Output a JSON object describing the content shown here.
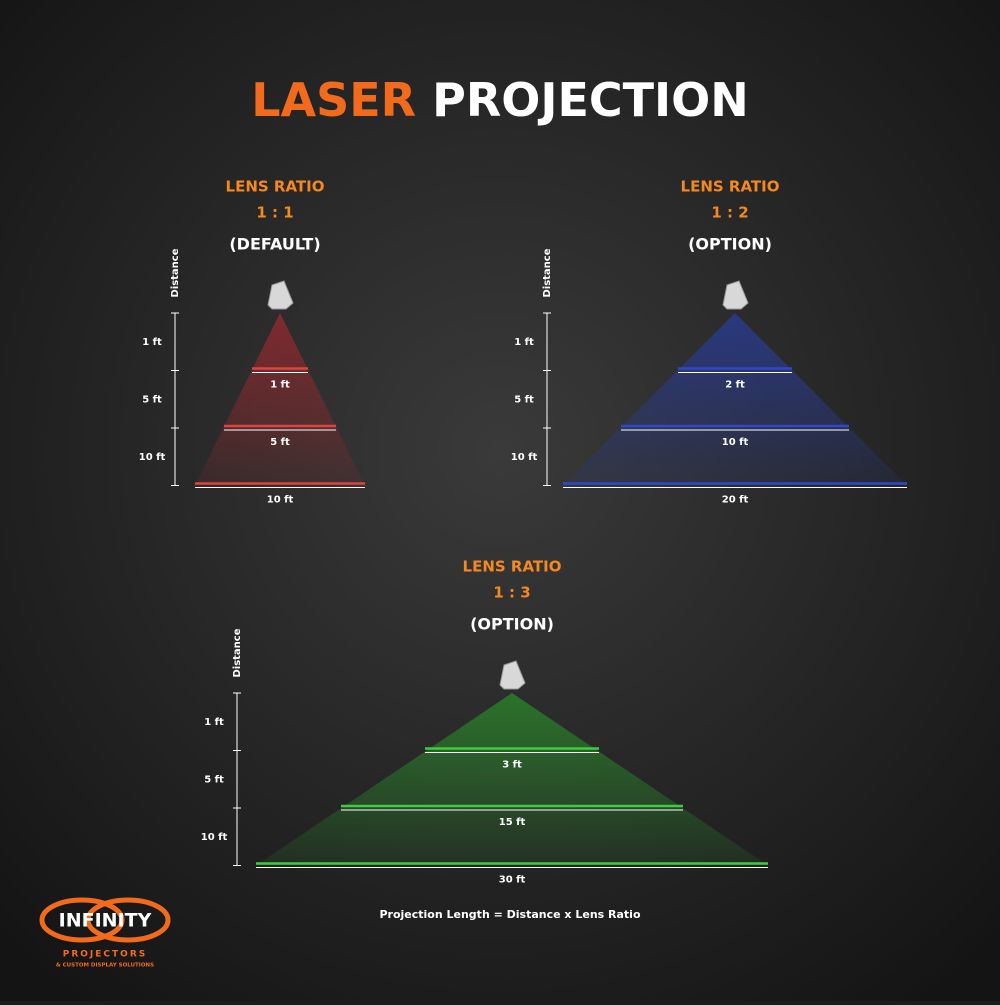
{
  "title": {
    "accent": "LASER",
    "rest": "PROJECTION"
  },
  "panels": [
    {
      "heading": "LENS  RATIO",
      "ratio": "1 : 1",
      "note": "(DEFAULT)",
      "axis_label": "Distance",
      "distances": [
        "1 ft",
        "5 ft",
        "10 ft"
      ],
      "widths": [
        "1 ft",
        "5 ft",
        "10 ft"
      ]
    },
    {
      "heading": "LENS RATIO",
      "ratio": "1 : 2",
      "note": "(OPTION)",
      "axis_label": "Distance",
      "distances": [
        "1 ft",
        "5 ft",
        "10 ft"
      ],
      "widths": [
        "2 ft",
        "10 ft",
        "20 ft"
      ]
    },
    {
      "heading": "LENS RATIO",
      "ratio": "1 : 3",
      "note": "(OPTION)",
      "axis_label": "Distance",
      "distances": [
        "1 ft",
        "5 ft",
        "10 ft"
      ],
      "widths": [
        "3 ft",
        "15 ft",
        "30 ft"
      ]
    }
  ],
  "formula": "Projection Length = Distance x Lens Ratio",
  "logo": {
    "name": "INFINITY",
    "line1": "PROJECTORS",
    "line2": "& CUSTOM DISPLAY SOLUTIONS"
  }
}
